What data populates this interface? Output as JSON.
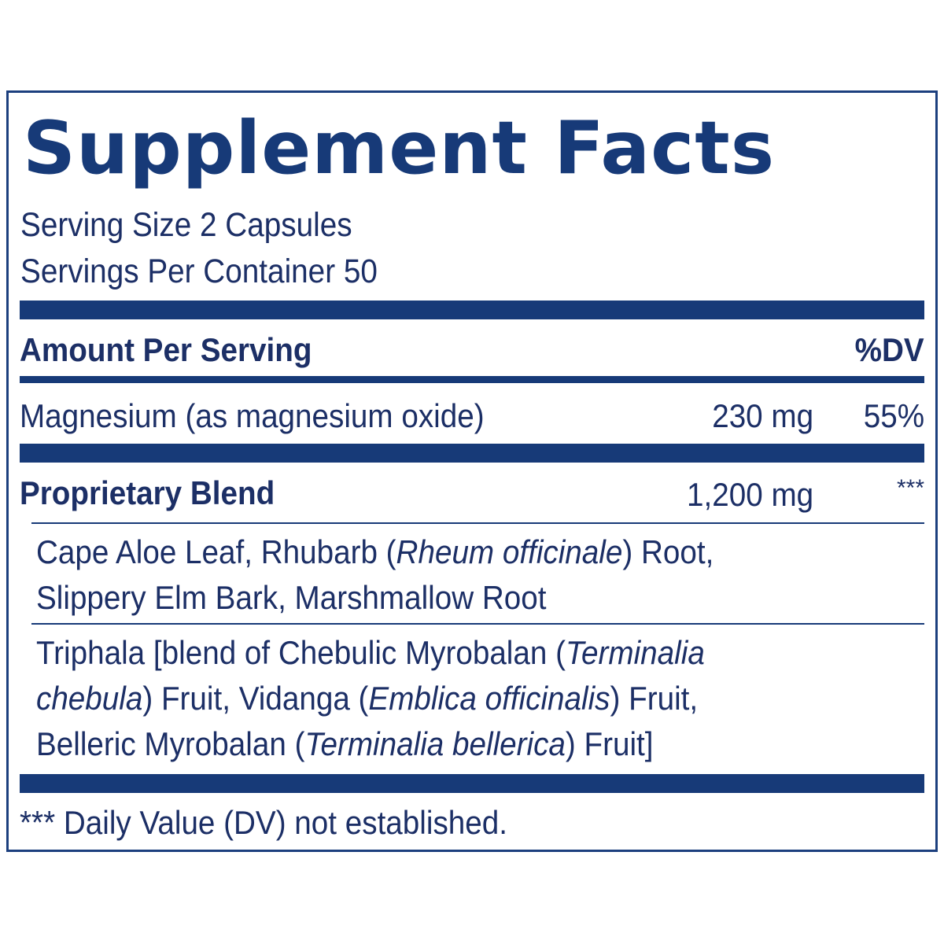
{
  "title": "Supplement Facts",
  "serving_size": "Serving Size 2 Capsules",
  "servings_per_container": "Servings Per Container 50",
  "header": {
    "amount_label": "Amount Per Serving",
    "dv_label": "%DV"
  },
  "nutrients": [
    {
      "name": "Magnesium (as magnesium oxide)",
      "amount": "230 mg",
      "dv": "55%"
    }
  ],
  "blend": {
    "name": "Proprietary Blend",
    "amount": "1,200 mg",
    "dv": "***",
    "group1": {
      "line1_a": "Cape Aloe Leaf, Rhubarb (",
      "line1_b": "Rheum officinale",
      "line1_c": ") Root,",
      "line2": "Slippery Elm Bark, Marshmallow Root"
    },
    "group2": {
      "line1_a": "Triphala [blend of Chebulic Myrobalan (",
      "line1_b": "Terminalia",
      "line2_a": "chebula",
      "line2_b": ") Fruit, Vidanga (",
      "line2_c": "Emblica officinalis",
      "line2_d": ") Fruit,",
      "line3_a": "Belleric Myrobalan (",
      "line3_b": "Terminalia bellerica",
      "line3_c": ") Fruit]"
    }
  },
  "footnote": "*** Daily Value (DV) not established.",
  "colors": {
    "brand_blue": "#173a78",
    "text": "#1c2f66",
    "border": "#1c3f7e"
  }
}
